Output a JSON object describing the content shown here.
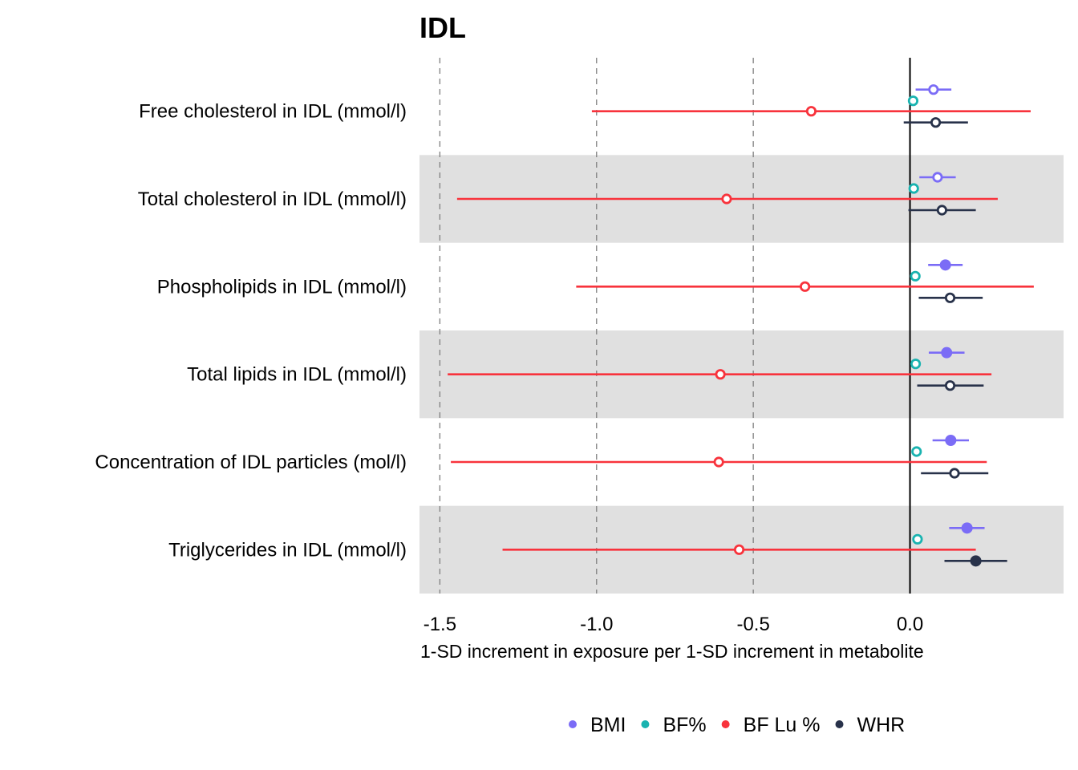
{
  "chart_data": {
    "type": "forest",
    "title": "IDL",
    "xlabel": "1-SD increment in exposure per 1-SD increment in metabolite",
    "ylabel": "",
    "xlim": [
      -1.565,
      0.49
    ],
    "x_ticks": [
      {
        "value": -1.5,
        "label": "-1.5"
      },
      {
        "value": -1.0,
        "label": "-1.0"
      },
      {
        "value": -0.5,
        "label": "-0.5"
      },
      {
        "value": 0.0,
        "label": "0.0"
      }
    ],
    "reference_lines": {
      "dashed": [
        -1.5,
        -1.0,
        -0.5
      ],
      "solid": [
        0.0
      ]
    },
    "alternating_row_shading": true,
    "legend_position": "bottom",
    "categories": [
      "Free cholesterol in IDL (mmol/l)",
      "Total cholesterol in IDL (mmol/l)",
      "Phospholipids in IDL (mmol/l)",
      "Total lipids in IDL (mmol/l)",
      "Concentration of IDL particles (mol/l)",
      "Triglycerides in IDL (mmol/l)"
    ],
    "series": [
      {
        "name": "BMI",
        "color": "#7b6cf6",
        "estimate": [
          0.075,
          0.088,
          0.113,
          0.117,
          0.13,
          0.182
        ],
        "lower": [
          0.018,
          0.03,
          0.058,
          0.06,
          0.072,
          0.125
        ],
        "upper": [
          0.132,
          0.146,
          0.168,
          0.174,
          0.188,
          0.238
        ],
        "filled": [
          false,
          false,
          true,
          true,
          true,
          true
        ]
      },
      {
        "name": "BF%",
        "color": "#19b3b0",
        "estimate": [
          0.01,
          0.012,
          0.017,
          0.018,
          0.021,
          0.024
        ],
        "lower": [
          -0.005,
          -0.003,
          0.002,
          0.003,
          0.006,
          0.009
        ],
        "upper": [
          0.025,
          0.027,
          0.032,
          0.033,
          0.036,
          0.039
        ],
        "filled": [
          false,
          false,
          false,
          false,
          false,
          false
        ]
      },
      {
        "name": "BF Lu %",
        "color": "#f8333c",
        "estimate": [
          -0.315,
          -0.585,
          -0.335,
          -0.605,
          -0.61,
          -0.545
        ],
        "lower": [
          -1.015,
          -1.445,
          -1.065,
          -1.475,
          -1.465,
          -1.3
        ],
        "upper": [
          0.385,
          0.28,
          0.395,
          0.26,
          0.245,
          0.21
        ],
        "filled": [
          false,
          false,
          false,
          false,
          false,
          false
        ]
      },
      {
        "name": "WHR",
        "color": "#28324a",
        "estimate": [
          0.082,
          0.102,
          0.128,
          0.128,
          0.142,
          0.21
        ],
        "lower": [
          -0.02,
          -0.005,
          0.028,
          0.023,
          0.035,
          0.11
        ],
        "upper": [
          0.185,
          0.21,
          0.232,
          0.235,
          0.25,
          0.31
        ],
        "filled": [
          false,
          false,
          false,
          false,
          false,
          true
        ]
      }
    ]
  }
}
